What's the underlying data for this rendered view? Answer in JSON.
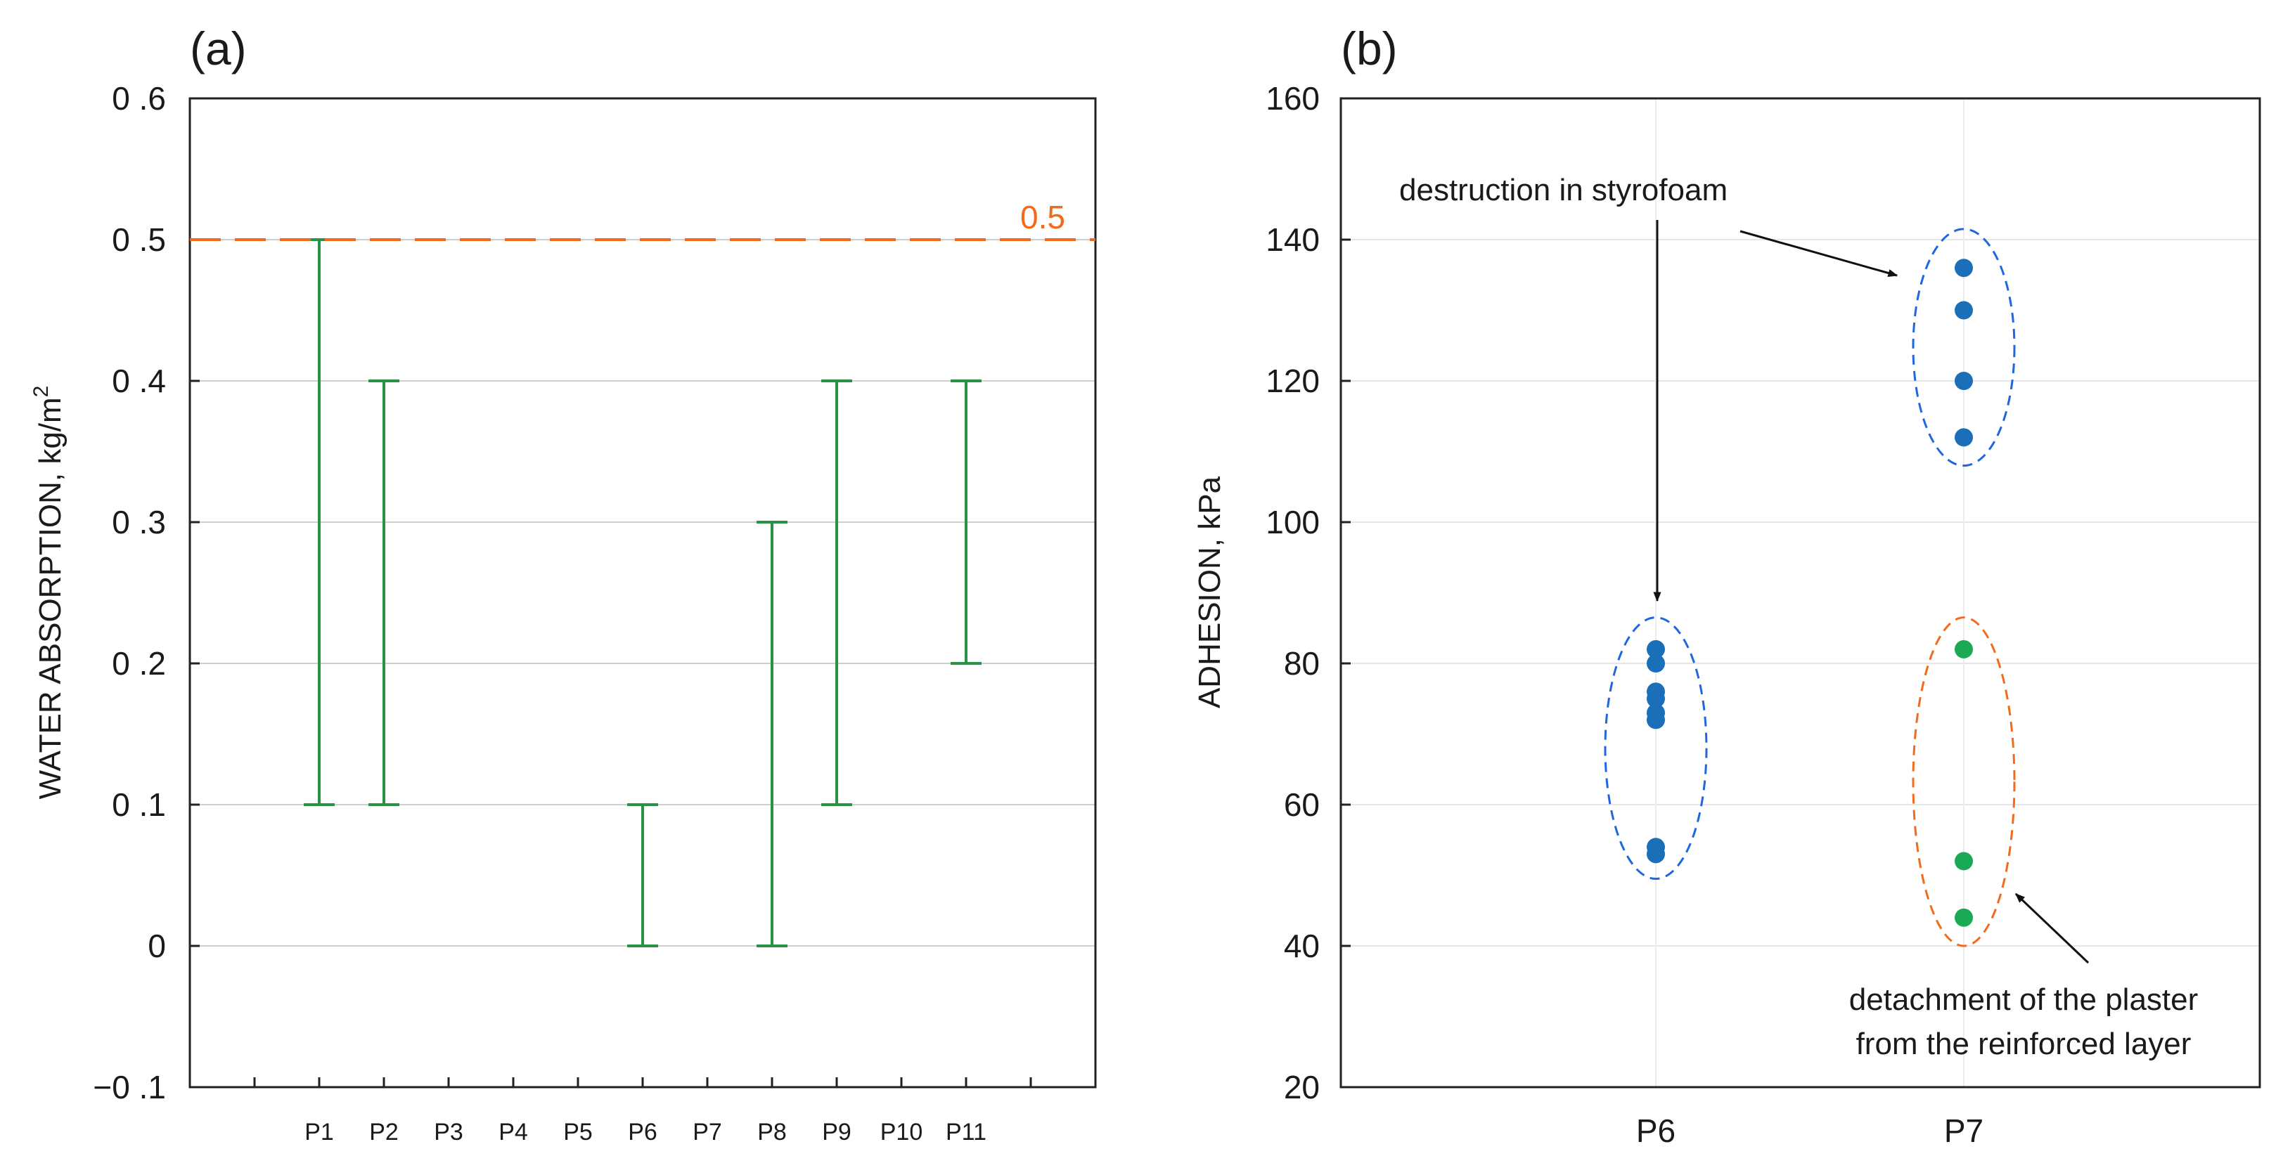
{
  "chart_data": [
    {
      "panel_label": "(a)",
      "type": "range",
      "ylabel_main": "WATER ABSORPTION, kg/m",
      "ylabel_sup": "2",
      "ylim": [
        -0.1,
        0.6
      ],
      "yticks": [
        -0.1,
        0,
        0.1,
        0.2,
        0.3,
        0.4,
        0.5,
        0.6
      ],
      "ytick_labels": [
        "−0 .1",
        "0",
        "0 .1",
        "0 .2",
        "0 .3",
        "0 .4",
        "0 .5",
        "0 .6"
      ],
      "categories": [
        "P1",
        "P2",
        "P3",
        "P4",
        "P5",
        "P6",
        "P7",
        "P8",
        "P9",
        "P10",
        "P11"
      ],
      "ranges": [
        [
          0.1,
          0.5
        ],
        [
          0.1,
          0.4
        ],
        null,
        null,
        null,
        [
          0,
          0.1
        ],
        null,
        [
          0,
          0.3
        ],
        [
          0.1,
          0.4
        ],
        null,
        [
          0.2,
          0.4
        ]
      ],
      "reference_line": {
        "value": 0.5,
        "label": "0.5",
        "color": "#f26b1d"
      },
      "range_color": "#2a9147",
      "grid": true
    },
    {
      "panel_label": "(b)",
      "type": "scatter",
      "ylabel": "ADHESION, kPa",
      "ylim": [
        20,
        160
      ],
      "yticks": [
        20,
        40,
        60,
        80,
        100,
        120,
        140,
        160
      ],
      "ytick_labels": [
        "20",
        "40",
        "60",
        "80",
        "100",
        "120",
        "140",
        "160"
      ],
      "categories": [
        "P6",
        "P7"
      ],
      "series": [
        {
          "name": "destruction in styrofoam",
          "color": "#1a6fb8",
          "points": [
            {
              "x": "P6",
              "y": 82
            },
            {
              "x": "P6",
              "y": 80
            },
            {
              "x": "P6",
              "y": 76
            },
            {
              "x": "P6",
              "y": 75
            },
            {
              "x": "P6",
              "y": 73
            },
            {
              "x": "P6",
              "y": 72
            },
            {
              "x": "P6",
              "y": 54
            },
            {
              "x": "P6",
              "y": 53
            },
            {
              "x": "P7",
              "y": 136
            },
            {
              "x": "P7",
              "y": 130
            },
            {
              "x": "P7",
              "y": 120
            },
            {
              "x": "P7",
              "y": 112
            }
          ]
        },
        {
          "name": "detachment of the plaster from the reinforced layer",
          "color": "#1aaa55",
          "points": [
            {
              "x": "P7",
              "y": 82
            },
            {
              "x": "P7",
              "y": 52
            },
            {
              "x": "P7",
              "y": 44
            }
          ]
        }
      ],
      "groups": [
        {
          "category": "P6",
          "y_range": [
            49.5,
            86.5
          ],
          "color": "#1f66e0",
          "series": "destruction in styrofoam"
        },
        {
          "category": "P7",
          "y_range": [
            108,
            141.5
          ],
          "color": "#1f66e0",
          "series": "destruction in styrofoam"
        },
        {
          "category": "P7",
          "y_range": [
            40,
            86.5
          ],
          "color": "#f26b1d",
          "series": "detachment of the plaster from the reinforced layer"
        }
      ],
      "annotations": [
        {
          "text": "destruction in styrofoam"
        },
        {
          "text": "detachment of the plaster"
        },
        {
          "text": "from the reinforced layer"
        }
      ],
      "grid": true
    }
  ]
}
